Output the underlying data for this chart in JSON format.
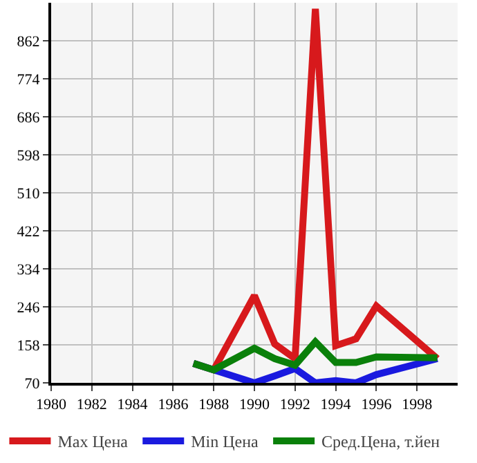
{
  "chart_data": {
    "type": "line",
    "x": [
      1987,
      1988,
      1990,
      1991,
      1992,
      1993,
      1994,
      1995,
      1996,
      1999
    ],
    "series": [
      {
        "name": "Max Цена",
        "color": "#d7191c",
        "values": [
          115,
          100,
          272,
          160,
          126,
          936,
          156,
          172,
          248,
          126
        ]
      },
      {
        "name": "Min Цена",
        "color": "#1a1adf",
        "values": [
          115,
          100,
          70,
          86,
          103,
          70,
          75,
          70,
          89,
          126
        ]
      },
      {
        "name": "Сред.Цена, т.йен",
        "color": "#0a800a",
        "values": [
          115,
          100,
          150,
          126,
          111,
          165,
          117,
          117,
          130,
          128
        ]
      }
    ],
    "xlim": [
      1980,
      2000
    ],
    "xticks": [
      1980,
      1982,
      1984,
      1986,
      1988,
      1990,
      1992,
      1994,
      1996,
      1998
    ],
    "ylim": [
      70,
      950
    ],
    "yticks": [
      70,
      158,
      246,
      334,
      422,
      510,
      598,
      686,
      774,
      862
    ],
    "grid": true,
    "legend": "bottom",
    "marker": "none",
    "line_style": "solid"
  }
}
